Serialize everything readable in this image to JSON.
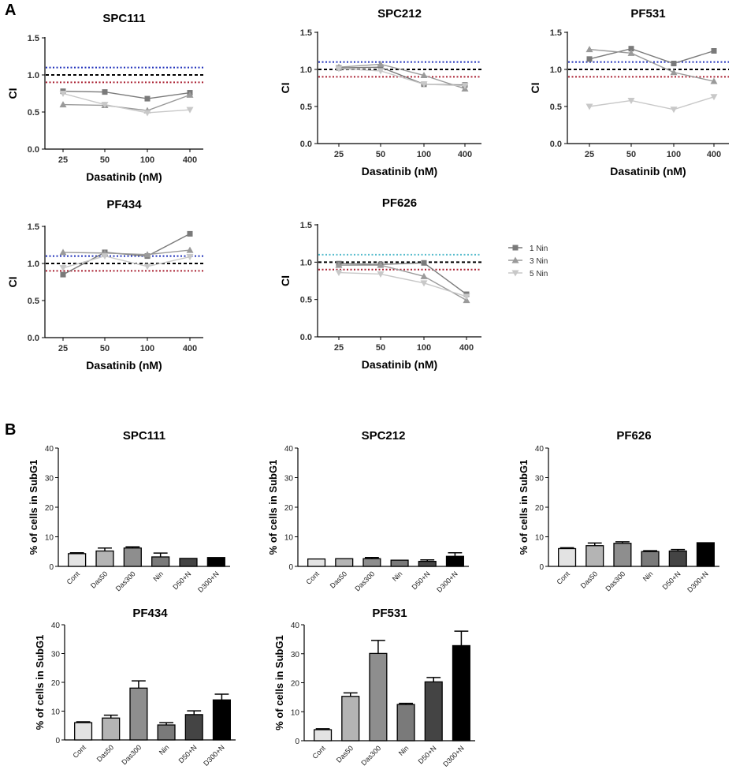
{
  "panels": {
    "A": "A",
    "B": "B"
  },
  "legend": {
    "entries": [
      {
        "label": "1 Nin",
        "color": "#7a7a7a",
        "marker": "square"
      },
      {
        "label": "3 Nin",
        "color": "#9a9a9a",
        "marker": "triangle-up"
      },
      {
        "label": "5 Nin",
        "color": "#c8c8c8",
        "marker": "triangle-down"
      }
    ]
  },
  "colors": {
    "ref_upper_blue": "#2233bb",
    "ref_upper_cyan": "#55bbcc",
    "ref_one": "#000000",
    "ref_lower": "#aa2233",
    "bar_fills": [
      "#e3e3e3",
      "#b4b4b4",
      "#8e8e8e",
      "#7a7a7a",
      "#444444",
      "#000000"
    ]
  },
  "chart_data": [
    {
      "id": "ci-spc111",
      "type": "line",
      "title": "SPC111",
      "xlabel": "Dasatinib (nM)",
      "ylabel": "CI",
      "categories": [
        "25",
        "50",
        "100",
        "400"
      ],
      "ylim": [
        0,
        1.5
      ],
      "yticks": [
        "0.0",
        "0.5",
        "1.0",
        "1.5"
      ],
      "reference_lines": [
        {
          "y": 1.1,
          "color": "#2233bb"
        },
        {
          "y": 1.0,
          "color": "#000000"
        },
        {
          "y": 0.9,
          "color": "#aa2233"
        }
      ],
      "series": [
        {
          "name": "1 Nin",
          "values": [
            0.78,
            0.77,
            0.68,
            0.76
          ]
        },
        {
          "name": "3 Nin",
          "values": [
            0.6,
            0.59,
            0.52,
            0.73
          ]
        },
        {
          "name": "5 Nin",
          "values": [
            0.75,
            0.6,
            0.49,
            0.53
          ]
        }
      ]
    },
    {
      "id": "ci-spc212",
      "type": "line",
      "title": "SPC212",
      "xlabel": "Dasatinib (nM)",
      "ylabel": "CI",
      "categories": [
        "25",
        "50",
        "100",
        "400"
      ],
      "ylim": [
        0,
        1.5
      ],
      "yticks": [
        "0.0",
        "0.5",
        "1.0",
        "1.5"
      ],
      "reference_lines": [
        {
          "y": 1.1,
          "color": "#2233bb"
        },
        {
          "y": 1.0,
          "color": "#000000"
        },
        {
          "y": 0.9,
          "color": "#aa2233"
        }
      ],
      "series": [
        {
          "name": "1 Nin",
          "values": [
            1.02,
            1.03,
            0.8,
            0.79
          ]
        },
        {
          "name": "3 Nin",
          "values": [
            1.03,
            1.07,
            0.92,
            0.74
          ]
        },
        {
          "name": "5 Nin",
          "values": [
            1.01,
            0.98,
            0.8,
            0.78
          ]
        }
      ]
    },
    {
      "id": "ci-pf531",
      "type": "line",
      "title": "PF531",
      "xlabel": "Dasatinib (nM)",
      "ylabel": "CI",
      "categories": [
        "25",
        "50",
        "100",
        "400"
      ],
      "ylim": [
        0,
        1.5
      ],
      "yticks": [
        "0.0",
        "0.5",
        "1.0",
        "1.5"
      ],
      "reference_lines": [
        {
          "y": 1.1,
          "color": "#2233bb"
        },
        {
          "y": 1.0,
          "color": "#000000"
        },
        {
          "y": 0.9,
          "color": "#aa2233"
        }
      ],
      "series": [
        {
          "name": "1 Nin",
          "values": [
            1.14,
            1.28,
            1.08,
            1.25
          ]
        },
        {
          "name": "3 Nin",
          "values": [
            1.27,
            1.22,
            0.96,
            0.84
          ]
        },
        {
          "name": "5 Nin",
          "values": [
            0.5,
            0.58,
            0.46,
            0.63
          ]
        }
      ]
    },
    {
      "id": "ci-pf434",
      "type": "line",
      "title": "PF434",
      "xlabel": "Dasatinib (nM)",
      "ylabel": "CI",
      "categories": [
        "25",
        "50",
        "100",
        "400"
      ],
      "ylim": [
        0,
        1.5
      ],
      "yticks": [
        "0.0",
        "0.5",
        "1.0",
        "1.5"
      ],
      "reference_lines": [
        {
          "y": 1.1,
          "color": "#2233bb"
        },
        {
          "y": 1.0,
          "color": "#000000"
        },
        {
          "y": 0.9,
          "color": "#aa2233"
        }
      ],
      "series": [
        {
          "name": "1 Nin",
          "values": [
            0.85,
            1.15,
            1.1,
            1.4
          ]
        },
        {
          "name": "3 Nin",
          "values": [
            1.15,
            1.14,
            1.12,
            1.18
          ]
        },
        {
          "name": "5 Nin",
          "values": [
            0.94,
            1.1,
            0.96,
            1.09
          ]
        }
      ]
    },
    {
      "id": "ci-pf626",
      "type": "line",
      "title": "PF626",
      "xlabel": "Dasatinib (nM)",
      "ylabel": "CI",
      "categories": [
        "25",
        "50",
        "100",
        "400"
      ],
      "ylim": [
        0,
        1.5
      ],
      "yticks": [
        "0.0",
        "0.5",
        "1.0",
        "1.5"
      ],
      "reference_lines": [
        {
          "y": 1.1,
          "color": "#55bbcc"
        },
        {
          "y": 1.0,
          "color": "#000000"
        },
        {
          "y": 0.9,
          "color": "#aa2233"
        }
      ],
      "series": [
        {
          "name": "1 Nin",
          "values": [
            0.98,
            0.97,
            0.99,
            0.57
          ]
        },
        {
          "name": "3 Nin",
          "values": [
            0.96,
            0.96,
            0.81,
            0.49
          ]
        },
        {
          "name": "5 Nin",
          "values": [
            0.86,
            0.84,
            0.72,
            0.54
          ]
        }
      ]
    },
    {
      "id": "subg1-spc111",
      "type": "bar",
      "title": "SPC111",
      "ylabel": "% of cells in SubG1",
      "categories": [
        "Cont",
        "Das50",
        "Das300",
        "Nin",
        "D50+N",
        "D300+N"
      ],
      "ylim": [
        0,
        40
      ],
      "yticks": [
        "0",
        "10",
        "20",
        "30",
        "40"
      ],
      "values": [
        4.3,
        5.2,
        6.2,
        3.2,
        2.7,
        3.0
      ],
      "errors": [
        0.3,
        1.0,
        0.4,
        1.3,
        0.0,
        0.0
      ]
    },
    {
      "id": "subg1-spc212",
      "type": "bar",
      "title": "SPC212",
      "ylabel": "% of cells in SubG1",
      "categories": [
        "Cont",
        "Das50",
        "Das300",
        "Nin",
        "D50+N",
        "D300+N"
      ],
      "ylim": [
        0,
        40
      ],
      "yticks": [
        "0",
        "10",
        "20",
        "30",
        "40"
      ],
      "values": [
        2.5,
        2.6,
        2.6,
        2.1,
        1.7,
        3.4
      ],
      "errors": [
        0.0,
        0.0,
        0.4,
        0.0,
        0.5,
        1.2
      ]
    },
    {
      "id": "subg1-pf626",
      "type": "bar",
      "title": "PF626",
      "ylabel": "% of cells in SubG1",
      "categories": [
        "Cont",
        "Das50",
        "Das300",
        "Nin",
        "D50+N",
        "D300+N"
      ],
      "ylim": [
        0,
        40
      ],
      "yticks": [
        "0",
        "10",
        "20",
        "30",
        "40"
      ],
      "values": [
        6.0,
        7.0,
        7.8,
        5.0,
        5.2,
        8.0
      ],
      "errors": [
        0.3,
        0.9,
        0.5,
        0.3,
        0.5,
        0.0
      ]
    },
    {
      "id": "subg1-pf434",
      "type": "bar",
      "title": "PF434",
      "ylabel": "% of cells in SubG1",
      "categories": [
        "Cont",
        "Das50",
        "Das300",
        "Nin",
        "D50+N",
        "D300+N"
      ],
      "ylim": [
        0,
        40
      ],
      "yticks": [
        "0",
        "10",
        "20",
        "30",
        "40"
      ],
      "values": [
        6.0,
        7.6,
        18.0,
        5.2,
        8.8,
        13.9
      ],
      "errors": [
        0.3,
        1.0,
        2.5,
        0.8,
        1.3,
        2.0
      ]
    },
    {
      "id": "subg1-pf531",
      "type": "bar",
      "title": "PF531",
      "ylabel": "% of cells in SubG1",
      "categories": [
        "Cont",
        "Das50",
        "Das300",
        "Nin",
        "D50+N",
        "D300+N"
      ],
      "ylim": [
        0,
        40
      ],
      "yticks": [
        "0",
        "10",
        "20",
        "30",
        "40"
      ],
      "values": [
        3.8,
        15.3,
        30.1,
        12.5,
        20.3,
        32.8
      ],
      "errors": [
        0.3,
        1.2,
        4.5,
        0.4,
        1.5,
        5.0
      ]
    }
  ]
}
